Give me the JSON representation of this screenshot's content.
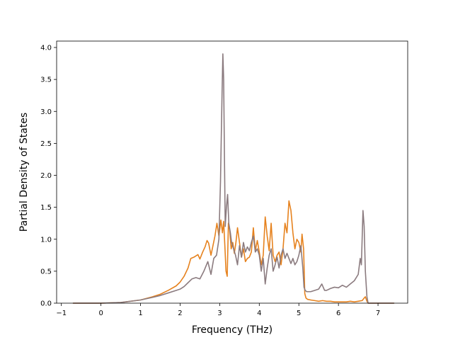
{
  "chart_data": {
    "type": "line",
    "xlabel": "Frequency (THz)",
    "ylabel": "Partial Density of States",
    "xlim": [
      -1.12,
      7.75
    ],
    "ylim": [
      0,
      4.1
    ],
    "xticks": [
      -1,
      0,
      1,
      2,
      3,
      4,
      5,
      6,
      7
    ],
    "xtick_labels": [
      "−1",
      "0",
      "1",
      "2",
      "3",
      "4",
      "5",
      "6",
      "7"
    ],
    "yticks": [
      0,
      0.5,
      1,
      1.5,
      2,
      2.5,
      3,
      3.5,
      4
    ],
    "ytick_labels": [
      "0.0",
      "0.5",
      "1.0",
      "1.5",
      "2.0",
      "2.5",
      "3.0",
      "3.5",
      "4.0"
    ],
    "grid": false,
    "legend": false,
    "series": [
      {
        "color": "#e6821e",
        "x": [
          -0.7,
          0.0,
          0.5,
          1.0,
          1.3,
          1.5,
          1.7,
          1.9,
          2.0,
          2.1,
          2.2,
          2.27,
          2.35,
          2.45,
          2.5,
          2.57,
          2.63,
          2.68,
          2.72,
          2.78,
          2.83,
          2.88,
          2.93,
          2.98,
          3.03,
          3.07,
          3.1,
          3.13,
          3.16,
          3.19,
          3.22,
          3.25,
          3.29,
          3.33,
          3.37,
          3.41,
          3.45,
          3.5,
          3.55,
          3.6,
          3.65,
          3.7,
          3.75,
          3.8,
          3.85,
          3.9,
          3.95,
          4.0,
          4.05,
          4.1,
          4.15,
          4.2,
          4.25,
          4.3,
          4.35,
          4.4,
          4.45,
          4.5,
          4.55,
          4.6,
          4.65,
          4.7,
          4.75,
          4.8,
          4.85,
          4.9,
          4.95,
          5.0,
          5.05,
          5.08,
          5.12,
          5.15,
          5.18,
          5.22,
          5.3,
          5.4,
          5.5,
          5.6,
          5.7,
          5.8,
          5.9,
          6.0,
          6.1,
          6.2,
          6.3,
          6.4,
          6.5,
          6.6,
          6.65,
          6.68,
          6.72,
          6.75,
          7.4
        ],
        "y": [
          0,
          0,
          0.01,
          0.05,
          0.1,
          0.14,
          0.2,
          0.27,
          0.33,
          0.42,
          0.55,
          0.7,
          0.72,
          0.76,
          0.69,
          0.8,
          0.88,
          0.98,
          0.94,
          0.75,
          0.9,
          1.05,
          1.25,
          1.05,
          1.3,
          1.1,
          1.28,
          0.9,
          0.5,
          0.42,
          1.25,
          1.15,
          0.85,
          0.95,
          0.78,
          0.95,
          1.18,
          0.95,
          0.72,
          0.85,
          0.65,
          0.7,
          0.72,
          0.8,
          1.18,
          0.82,
          0.98,
          0.8,
          0.6,
          0.75,
          1.35,
          1.05,
          0.82,
          1.25,
          0.75,
          0.65,
          0.75,
          0.8,
          0.6,
          0.85,
          1.25,
          1.1,
          1.6,
          1.45,
          1.1,
          0.85,
          1.0,
          0.95,
          0.8,
          1.08,
          0.85,
          0.15,
          0.08,
          0.06,
          0.05,
          0.04,
          0.03,
          0.04,
          0.03,
          0.03,
          0.02,
          0.02,
          0.02,
          0.02,
          0.03,
          0.02,
          0.03,
          0.04,
          0.08,
          0.1,
          0.03,
          0,
          0
        ]
      },
      {
        "color": "#8b7b7f",
        "x": [
          -0.7,
          0.0,
          0.5,
          1.0,
          1.3,
          1.5,
          1.7,
          1.9,
          2.0,
          2.1,
          2.2,
          2.3,
          2.4,
          2.5,
          2.6,
          2.7,
          2.78,
          2.85,
          2.92,
          2.98,
          3.02,
          3.06,
          3.08,
          3.1,
          3.12,
          3.14,
          3.17,
          3.2,
          3.23,
          3.27,
          3.3,
          3.35,
          3.4,
          3.45,
          3.5,
          3.55,
          3.6,
          3.65,
          3.7,
          3.75,
          3.8,
          3.85,
          3.9,
          3.95,
          4.0,
          4.05,
          4.1,
          4.15,
          4.2,
          4.25,
          4.3,
          4.35,
          4.4,
          4.45,
          4.5,
          4.55,
          4.6,
          4.65,
          4.7,
          4.75,
          4.8,
          4.85,
          4.9,
          4.95,
          5.0,
          5.05,
          5.1,
          5.13,
          5.16,
          5.2,
          5.3,
          5.4,
          5.5,
          5.58,
          5.65,
          5.7,
          5.8,
          5.9,
          6.0,
          6.1,
          6.2,
          6.3,
          6.4,
          6.5,
          6.55,
          6.58,
          6.62,
          6.65,
          6.68,
          6.72,
          6.75,
          7.4
        ],
        "y": [
          0,
          0,
          0.01,
          0.05,
          0.09,
          0.12,
          0.16,
          0.2,
          0.22,
          0.26,
          0.32,
          0.38,
          0.4,
          0.38,
          0.5,
          0.65,
          0.45,
          0.7,
          0.75,
          1.0,
          1.9,
          3.3,
          3.9,
          3.5,
          2.3,
          1.2,
          1.5,
          1.7,
          1.25,
          1.1,
          0.95,
          0.85,
          0.75,
          0.6,
          0.9,
          0.72,
          0.95,
          0.8,
          0.88,
          0.82,
          0.95,
          1.05,
          0.8,
          0.85,
          0.75,
          0.5,
          0.7,
          0.3,
          0.55,
          0.75,
          0.85,
          0.5,
          0.6,
          0.72,
          0.55,
          0.75,
          0.85,
          0.7,
          0.78,
          0.7,
          0.62,
          0.7,
          0.6,
          0.65,
          0.75,
          0.9,
          0.55,
          0.25,
          0.2,
          0.18,
          0.18,
          0.2,
          0.22,
          0.3,
          0.2,
          0.2,
          0.23,
          0.25,
          0.24,
          0.28,
          0.25,
          0.3,
          0.35,
          0.45,
          0.7,
          0.6,
          1.45,
          1.2,
          0.5,
          0.1,
          0,
          0
        ]
      }
    ]
  }
}
